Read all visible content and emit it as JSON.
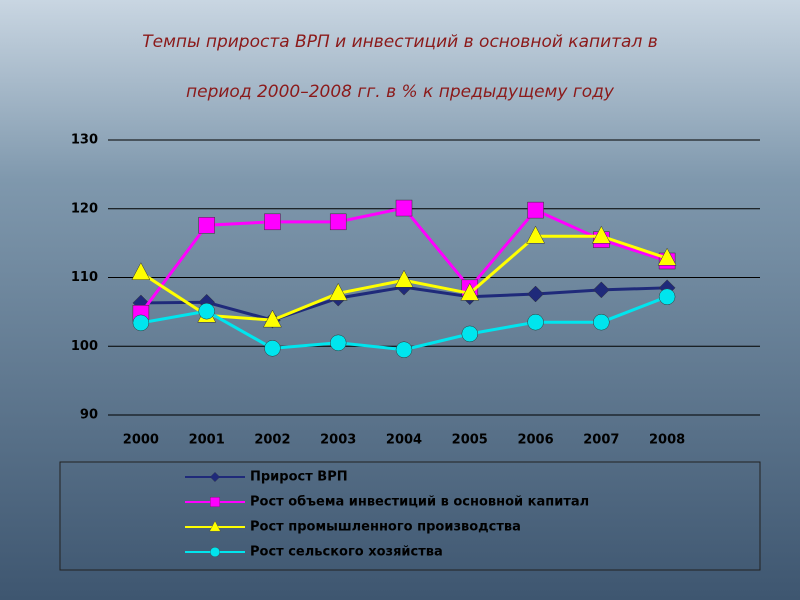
{
  "chart_data": {
    "type": "line",
    "title": "Темпы  прироста ВРП и инвестиций в основной капитал в",
    "subtitle": "период 2000–2008 гг.  в % к предыдущему году",
    "categories": [
      "2000",
      "2001",
      "2002",
      "2003",
      "2004",
      "2005",
      "2006",
      "2007",
      "2008"
    ],
    "series": [
      {
        "name": "Прирост ВРП",
        "color": "#1f2a7a",
        "marker": "diamond",
        "values": [
          106.3,
          106.4,
          103.8,
          107,
          108.6,
          107.2,
          107.6,
          108.2,
          108.5
        ]
      },
      {
        "name": "Рост объема инвестиций в основной капитал",
        "color": "#ff00ff",
        "marker": "square",
        "values": [
          104.8,
          117.6,
          118.1,
          118.1,
          120.1,
          108.5,
          119.8,
          115.5,
          112.4
        ]
      },
      {
        "name": "Рост промышленного производства",
        "color": "#ffff00",
        "marker": "triangle",
        "values": [
          110.7,
          104.5,
          103.8,
          107.7,
          109.6,
          107.7,
          116,
          116,
          112.8
        ]
      },
      {
        "name": "Рост сельского хозяйства",
        "color": "#00e5ee",
        "marker": "circle",
        "values": [
          103.4,
          105.1,
          99.7,
          100.5,
          99.5,
          101.8,
          103.5,
          103.5,
          107.2
        ]
      }
    ],
    "ylim": [
      90,
      130
    ],
    "yticks": [
      90,
      100,
      110,
      120,
      130
    ],
    "grid": true
  }
}
